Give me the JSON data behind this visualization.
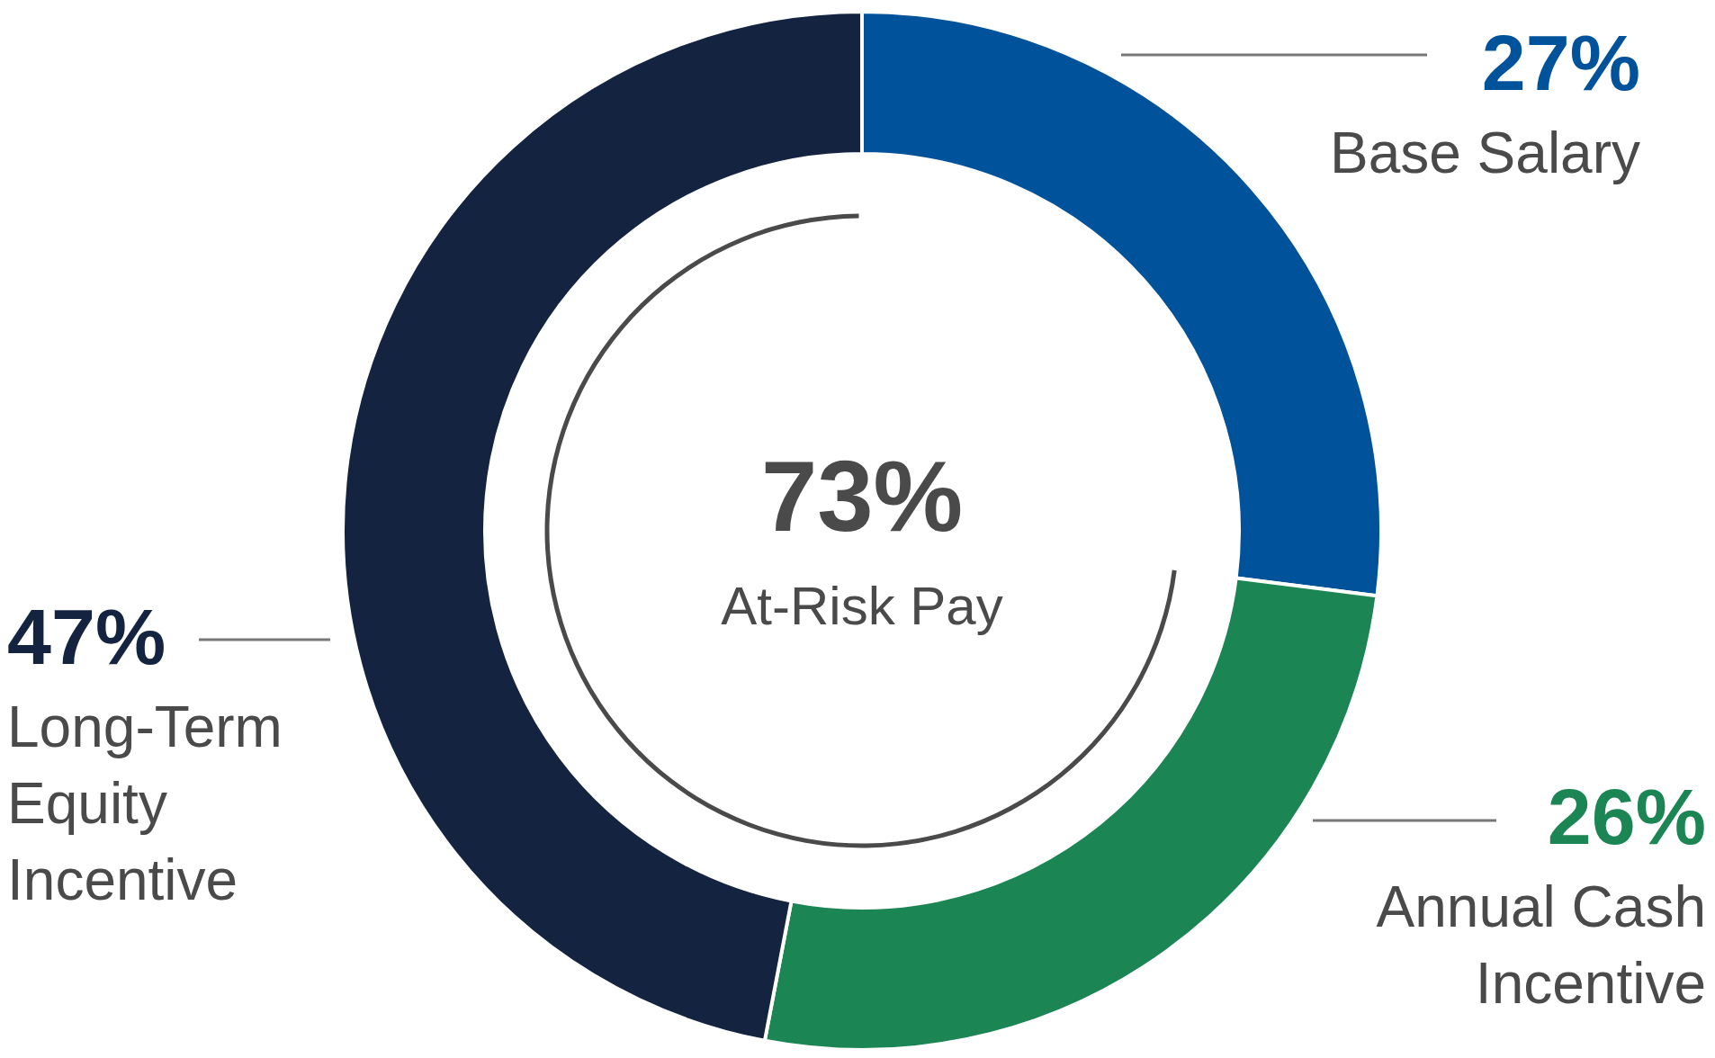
{
  "chart_data": {
    "type": "donut",
    "categories": [
      "Base Salary",
      "Annual Cash Incentive",
      "Long-Term Equity Incentive"
    ],
    "values": [
      27,
      26,
      47
    ],
    "colors": [
      "#00529b",
      "#1c8554",
      "#14233f"
    ],
    "value_labels": [
      "27%",
      "26%",
      "47%"
    ],
    "annotations": [
      "73%",
      "At-Risk Pay"
    ]
  }
}
